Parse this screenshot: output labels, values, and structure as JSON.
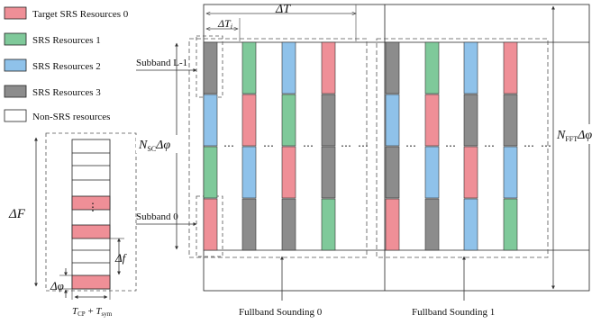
{
  "legend": {
    "items": [
      {
        "label": "Target SRS Resources 0",
        "color": "#ef8f97"
      },
      {
        "label": "SRS Resources 1",
        "color": "#7fc99a"
      },
      {
        "label": "SRS Resources 2",
        "color": "#8fc2ea"
      },
      {
        "label": "SRS Resources 3",
        "color": "#8c8c8c"
      },
      {
        "label": "Non-SRS resources",
        "color": "#ffffff"
      }
    ]
  },
  "labels": {
    "delta_T_main": "ΔT",
    "delta_T_sub": "ΔT",
    "delta_T_sub_index": "i",
    "subband_top": "Subband L-1",
    "subband_bottom": "Subband 0",
    "nsc_prefix": "N",
    "nsc_sub": "SC",
    "nsc_suffix": "Δφ",
    "nfft_prefix": "N",
    "nfft_sub": "FFT",
    "nfft_suffix": "Δφ",
    "delta_F": "ΔF",
    "delta_f": "Δf",
    "delta_phi": "Δφ",
    "vdots": "⋮",
    "hdots": "⋯",
    "tcp": "T",
    "tcp_sub": "CP",
    "plus": " + ",
    "tsym": "T",
    "tsym_sub": "sym",
    "sounding0": "Fullband Sounding 0",
    "sounding1": "Fullband Sounding 1"
  }
}
